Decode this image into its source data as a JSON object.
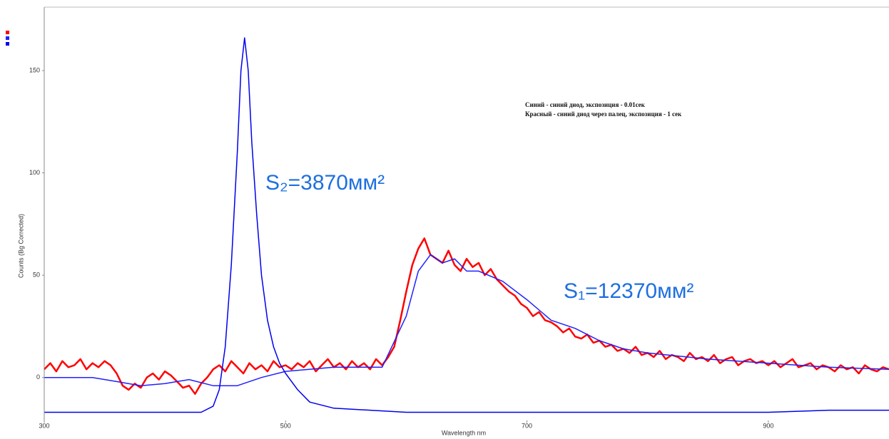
{
  "chart_data": {
    "type": "line",
    "y_label": "Counts (Bg Corrected)",
    "x_label": "Wavelength nm",
    "annotations": [
      "Синий - синий диод, экспозиция - 0.01сек",
      "Красный - синий диод через палец, экспозиция - 1 сек",
      "S₂=3870мм²",
      "S₁=12370мм²"
    ],
    "xlim": [
      300,
      1000
    ],
    "xticks": [
      300,
      500,
      700,
      900
    ],
    "ylim": [
      -21,
      181
    ],
    "yticks": [
      0,
      50,
      100,
      150
    ],
    "series": [
      {
        "color": "#ff0000",
        "x": [
          300,
          305,
          310,
          315,
          320,
          325,
          330,
          335,
          340,
          345,
          350,
          355,
          360,
          365,
          370,
          375,
          380,
          385,
          390,
          395,
          400,
          405,
          410,
          415,
          420,
          425,
          430,
          435,
          440,
          445,
          450,
          455,
          460,
          465,
          470,
          475,
          480,
          485,
          490,
          495,
          500,
          505,
          510,
          515,
          520,
          525,
          530,
          535,
          540,
          545,
          550,
          555,
          560,
          565,
          570,
          575,
          580,
          585,
          590,
          595,
          600,
          605,
          610,
          615,
          620,
          625,
          630,
          635,
          640,
          645,
          650,
          655,
          660,
          665,
          670,
          675,
          680,
          685,
          690,
          695,
          700,
          705,
          710,
          715,
          720,
          725,
          730,
          735,
          740,
          745,
          750,
          755,
          760,
          765,
          770,
          775,
          780,
          785,
          790,
          795,
          800,
          805,
          810,
          815,
          820,
          825,
          830,
          835,
          840,
          845,
          850,
          855,
          860,
          865,
          870,
          875,
          880,
          885,
          890,
          895,
          900,
          905,
          910,
          915,
          920,
          925,
          930,
          935,
          940,
          945,
          950,
          955,
          960,
          965,
          970,
          975,
          980,
          985,
          990,
          995,
          1000
        ],
        "values": [
          4,
          7,
          3,
          8,
          5,
          6,
          9,
          4,
          7,
          5,
          8,
          6,
          2,
          -4,
          -6,
          -3,
          -5,
          0,
          2,
          -1,
          3,
          1,
          -2,
          -5,
          -4,
          -8,
          -3,
          0,
          4,
          6,
          3,
          8,
          5,
          2,
          7,
          4,
          6,
          3,
          8,
          5,
          6,
          4,
          7,
          5,
          8,
          3,
          6,
          9,
          5,
          7,
          4,
          8,
          5,
          7,
          4,
          9,
          6,
          10,
          15,
          28,
          42,
          55,
          63,
          68,
          60,
          58,
          56,
          62,
          55,
          52,
          58,
          54,
          56,
          50,
          53,
          48,
          45,
          42,
          40,
          36,
          34,
          30,
          32,
          28,
          27,
          25,
          22,
          24,
          20,
          19,
          21,
          17,
          18,
          15,
          16,
          13,
          14,
          12,
          15,
          11,
          12,
          10,
          13,
          9,
          11,
          10,
          8,
          12,
          9,
          10,
          8,
          11,
          7,
          9,
          10,
          6,
          8,
          9,
          7,
          8,
          6,
          8,
          5,
          7,
          9,
          5,
          6,
          7,
          4,
          6,
          5,
          3,
          6,
          4,
          5,
          2,
          6,
          4,
          3,
          5,
          4
        ]
      },
      {
        "color": "#2020ff",
        "x": [
          300,
          320,
          340,
          360,
          380,
          400,
          420,
          440,
          460,
          480,
          500,
          540,
          580,
          600,
          610,
          620,
          630,
          640,
          650,
          660,
          680,
          700,
          720,
          740,
          760,
          780,
          800,
          850,
          900,
          950,
          1000
        ],
        "values": [
          0,
          0,
          0,
          -2,
          -4,
          -3,
          -1,
          -4,
          -4,
          0,
          3,
          5,
          5,
          30,
          52,
          60,
          56,
          58,
          52,
          52,
          47,
          38,
          28,
          24,
          18,
          14,
          12,
          9,
          7,
          5,
          4
        ]
      },
      {
        "color": "#0000ee",
        "x": [
          300,
          400,
          430,
          440,
          445,
          450,
          455,
          460,
          463,
          466,
          469,
          472,
          476,
          480,
          485,
          490,
          495,
          500,
          510,
          520,
          540,
          600,
          800,
          900,
          950,
          1000
        ],
        "values": [
          -17,
          -17,
          -17,
          -14,
          -6,
          15,
          55,
          110,
          150,
          166,
          150,
          115,
          80,
          50,
          28,
          15,
          7,
          2,
          -6,
          -12,
          -15,
          -17,
          -17,
          -17,
          -16,
          -16
        ]
      }
    ]
  }
}
